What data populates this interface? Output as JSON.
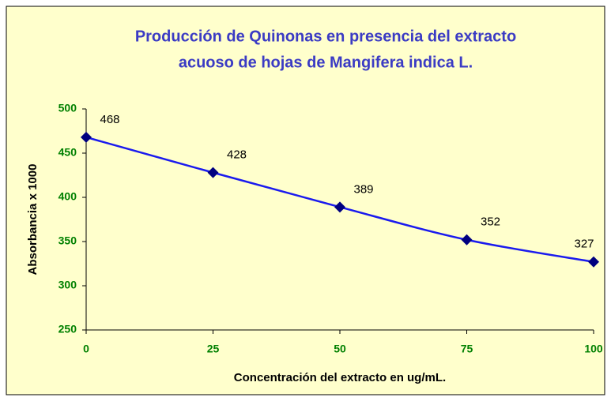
{
  "chart_data": {
    "type": "line",
    "title": [
      "Producción de Quinonas en presencia del extracto",
      "acuoso de hojas de Mangifera indica L."
    ],
    "xlabel": "Concentración del extracto en ug/mL.",
    "ylabel": "Absorbancia x 1000",
    "x": [
      0,
      25,
      50,
      75,
      100
    ],
    "series": [
      {
        "name": "Absorbancia",
        "color": "#1a1aee",
        "marker_color": "#000080",
        "values": [
          468,
          428,
          389,
          352,
          327
        ]
      }
    ],
    "xlim": [
      0,
      100
    ],
    "xticks": [
      0,
      25,
      50,
      75,
      100
    ],
    "ylim": [
      250,
      500
    ],
    "yticks": [
      250,
      300,
      350,
      400,
      450,
      500
    ],
    "grid": false
  }
}
